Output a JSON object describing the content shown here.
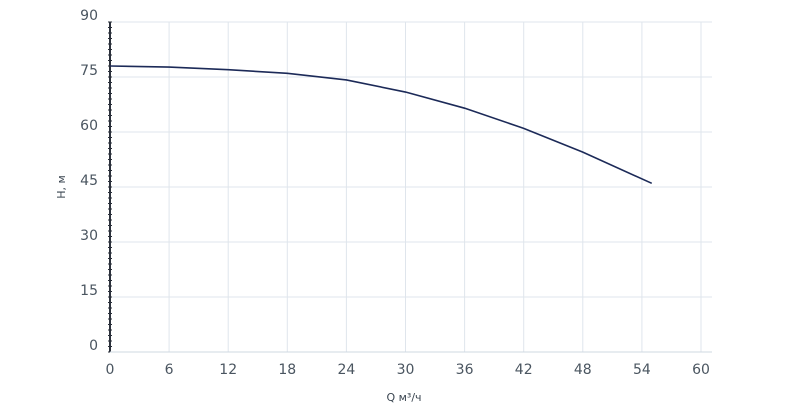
{
  "chart_data": {
    "type": "line",
    "x_label": "Q м³/ч",
    "y_label": "H, м",
    "x": [
      0,
      6,
      12,
      18,
      24,
      30,
      36,
      42,
      48,
      55
    ],
    "series": [
      {
        "name": "H",
        "color": "#1c2a58",
        "values": [
          78,
          77.7,
          77,
          76,
          74.2,
          70.9,
          66.5,
          61,
          54.5,
          46
        ]
      }
    ],
    "xlim": [
      0,
      60
    ],
    "ylim": [
      0,
      90
    ],
    "xticks": [
      0,
      6,
      12,
      18,
      24,
      30,
      36,
      42,
      48,
      54,
      60
    ],
    "yticks": [
      0,
      15,
      30,
      45,
      60,
      75,
      90
    ],
    "grid": true
  }
}
